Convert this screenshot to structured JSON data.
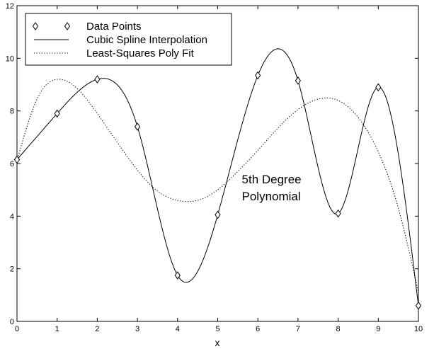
{
  "chart_data": {
    "type": "line",
    "title": "",
    "xlabel": "x",
    "ylabel": "",
    "xlim": [
      0,
      10
    ],
    "ylim": [
      0,
      12
    ],
    "xticks": [
      0,
      1,
      2,
      3,
      4,
      5,
      6,
      7,
      8,
      9,
      10
    ],
    "yticks": [
      0,
      2,
      4,
      6,
      8,
      10,
      12
    ],
    "xtick_labels": [
      "0",
      "1",
      "2",
      "3",
      "4",
      "5",
      "6",
      "7",
      "8",
      "9",
      "10"
    ],
    "ytick_labels": [
      "0",
      "2",
      "4",
      "6",
      "8",
      "10",
      "12"
    ],
    "grid": false,
    "legend_position": "top-left",
    "series": [
      {
        "name": "Data Points",
        "style": "diamond-markers",
        "x": [
          0,
          1,
          2,
          3,
          4,
          5,
          6,
          7,
          8,
          9,
          10
        ],
        "y": [
          6.15,
          7.9,
          9.2,
          7.4,
          1.75,
          4.05,
          9.35,
          9.15,
          4.1,
          8.9,
          0.6
        ]
      },
      {
        "name": "Cubic Spline Interpolation",
        "style": "solid",
        "x": [
          0,
          1,
          2,
          3,
          4,
          5,
          6,
          7,
          8,
          9,
          10
        ],
        "y": [
          6.15,
          7.9,
          9.2,
          7.4,
          1.75,
          4.05,
          9.35,
          9.15,
          4.1,
          8.9,
          0.6
        ]
      },
      {
        "name": "Least-Squares Poly Fit",
        "style": "dotted",
        "x": [
          0,
          0.5,
          1,
          1.5,
          2,
          2.5,
          3,
          3.5,
          4,
          4.5,
          5,
          5.5,
          6,
          6.5,
          7,
          7.5,
          8,
          8.5,
          9,
          9.5,
          10
        ],
        "y": [
          6.1,
          8.45,
          9.2,
          8.85,
          7.9,
          6.8,
          5.75,
          4.95,
          4.6,
          4.6,
          5.0,
          5.7,
          6.5,
          7.35,
          8.05,
          8.45,
          8.4,
          7.75,
          6.45,
          4.3,
          1.1
        ]
      }
    ],
    "annotations": [
      {
        "text": "5th Degree",
        "x": 5.6,
        "y": 5.25
      },
      {
        "text": "Polynomial",
        "x": 5.6,
        "y": 4.6
      }
    ],
    "legend": {
      "items": [
        "Data Points",
        "Cubic Spline Interpolation",
        "Least-Squares Poly Fit"
      ]
    },
    "colors": {
      "line": "#000000",
      "background": "#ffffff"
    }
  }
}
